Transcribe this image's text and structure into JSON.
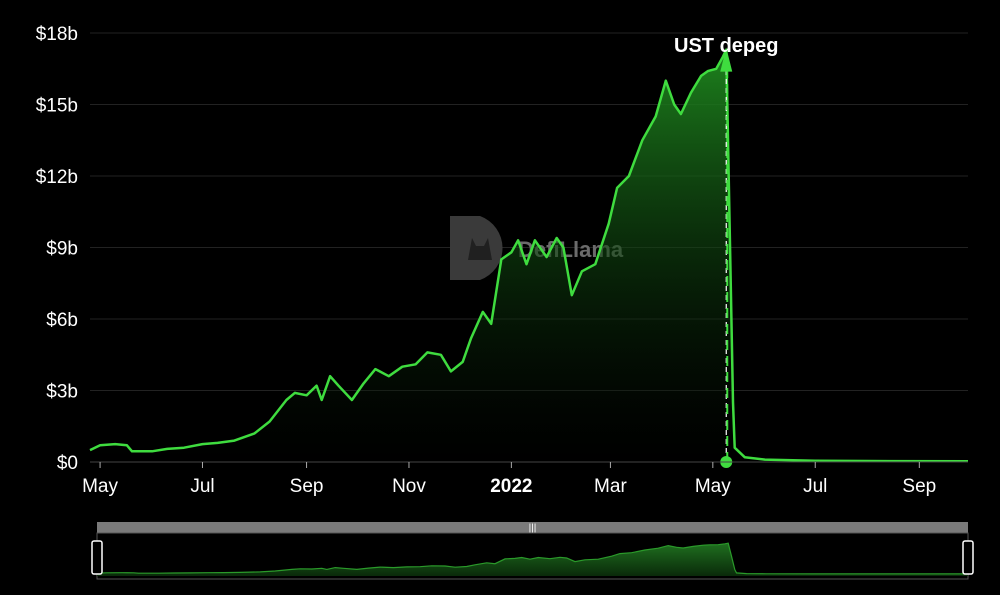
{
  "colors": {
    "background": "#000000",
    "line": "#3fdc3f",
    "area_top": "#1f8a1f",
    "area_bottom": "#000000",
    "grid": "#222222",
    "slider_track": "#7a7a7a",
    "slider_border": "#ffffff"
  },
  "watermark": {
    "text": "DefiLlama",
    "icon": "defillama-logo-icon"
  },
  "chart_data": {
    "type": "area",
    "title": "",
    "xlabel": "",
    "ylabel": "",
    "unit": "USD (billions)",
    "ylim": [
      0,
      18
    ],
    "xlim": [
      "2021-04-25",
      "2022-09-30"
    ],
    "grid": true,
    "y_ticks": [
      "$0",
      "$3b",
      "$6b",
      "$9b",
      "$12b",
      "$15b",
      "$18b"
    ],
    "y_tick_values": [
      0,
      3,
      6,
      9,
      12,
      15,
      18
    ],
    "x_ticks": [
      {
        "label": "May",
        "date": "2021-05-01",
        "bold": false
      },
      {
        "label": "Jul",
        "date": "2021-07-01",
        "bold": false
      },
      {
        "label": "Sep",
        "date": "2021-09-01",
        "bold": false
      },
      {
        "label": "Nov",
        "date": "2021-11-01",
        "bold": false
      },
      {
        "label": "2022",
        "date": "2022-01-01",
        "bold": true
      },
      {
        "label": "Mar",
        "date": "2022-03-01",
        "bold": false
      },
      {
        "label": "May",
        "date": "2022-05-01",
        "bold": false
      },
      {
        "label": "Jul",
        "date": "2022-07-01",
        "bold": false
      },
      {
        "label": "Sep",
        "date": "2022-09-01",
        "bold": false
      }
    ],
    "annotation": {
      "label": "UST depeg",
      "date": "2022-05-09"
    },
    "series": [
      {
        "name": "",
        "points": [
          [
            "2021-04-25",
            0.5
          ],
          [
            "2021-05-01",
            0.7
          ],
          [
            "2021-05-10",
            0.75
          ],
          [
            "2021-05-17",
            0.7
          ],
          [
            "2021-05-20",
            0.45
          ],
          [
            "2021-06-01",
            0.45
          ],
          [
            "2021-06-10",
            0.55
          ],
          [
            "2021-06-20",
            0.6
          ],
          [
            "2021-07-01",
            0.75
          ],
          [
            "2021-07-10",
            0.8
          ],
          [
            "2021-07-20",
            0.9
          ],
          [
            "2021-08-01",
            1.2
          ],
          [
            "2021-08-10",
            1.7
          ],
          [
            "2021-08-20",
            2.6
          ],
          [
            "2021-08-25",
            2.9
          ],
          [
            "2021-09-01",
            2.8
          ],
          [
            "2021-09-07",
            3.2
          ],
          [
            "2021-09-10",
            2.6
          ],
          [
            "2021-09-15",
            3.6
          ],
          [
            "2021-09-20",
            3.2
          ],
          [
            "2021-09-28",
            2.6
          ],
          [
            "2021-10-05",
            3.3
          ],
          [
            "2021-10-12",
            3.9
          ],
          [
            "2021-10-20",
            3.6
          ],
          [
            "2021-10-28",
            4.0
          ],
          [
            "2021-11-05",
            4.1
          ],
          [
            "2021-11-12",
            4.6
          ],
          [
            "2021-11-20",
            4.5
          ],
          [
            "2021-11-26",
            3.8
          ],
          [
            "2021-12-03",
            4.2
          ],
          [
            "2021-12-08",
            5.2
          ],
          [
            "2021-12-15",
            6.3
          ],
          [
            "2021-12-20",
            5.8
          ],
          [
            "2021-12-26",
            8.5
          ],
          [
            "2022-01-01",
            8.8
          ],
          [
            "2022-01-05",
            9.3
          ],
          [
            "2022-01-10",
            8.3
          ],
          [
            "2022-01-15",
            9.3
          ],
          [
            "2022-01-22",
            8.6
          ],
          [
            "2022-01-28",
            9.4
          ],
          [
            "2022-02-01",
            9.0
          ],
          [
            "2022-02-06",
            7.0
          ],
          [
            "2022-02-12",
            8.0
          ],
          [
            "2022-02-20",
            8.3
          ],
          [
            "2022-02-28",
            10.0
          ],
          [
            "2022-03-05",
            11.5
          ],
          [
            "2022-03-12",
            12.0
          ],
          [
            "2022-03-20",
            13.5
          ],
          [
            "2022-03-28",
            14.5
          ],
          [
            "2022-04-03",
            16.0
          ],
          [
            "2022-04-08",
            15.0
          ],
          [
            "2022-04-12",
            14.6
          ],
          [
            "2022-04-18",
            15.5
          ],
          [
            "2022-04-24",
            16.2
          ],
          [
            "2022-04-28",
            16.4
          ],
          [
            "2022-05-03",
            16.5
          ],
          [
            "2022-05-07",
            17.0
          ],
          [
            "2022-05-09",
            17.3
          ],
          [
            "2022-05-11",
            10.0
          ],
          [
            "2022-05-13",
            2.5
          ],
          [
            "2022-05-14",
            0.6
          ],
          [
            "2022-05-20",
            0.2
          ],
          [
            "2022-06-01",
            0.1
          ],
          [
            "2022-07-01",
            0.05
          ],
          [
            "2022-08-01",
            0.04
          ],
          [
            "2022-09-30",
            0.03
          ]
        ]
      }
    ]
  }
}
